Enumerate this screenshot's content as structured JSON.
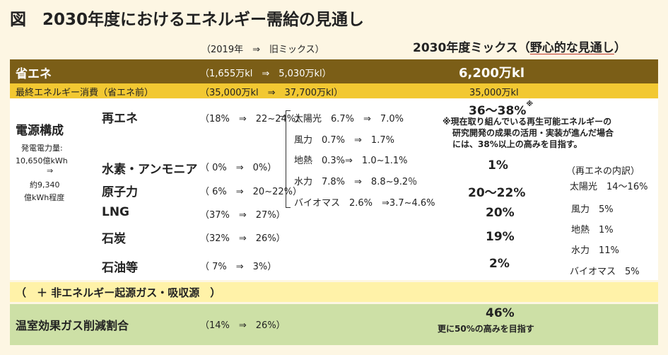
{
  "title": "図　2030年度におけるエネルギー需給の見通し",
  "header": {
    "old_mix": "（2019年　⇒　旧ミックス）",
    "new_mix_prefix": "2030年度ミックス（",
    "new_mix_underlined": "野心的な見通し",
    "new_mix_suffix": "）"
  },
  "savings": {
    "label": "省エネ",
    "range": "（1,655万kl　⇒　5,030万kl）",
    "value": "6,200万kl"
  },
  "final_consumption": {
    "label": "最終エネルギー消費（省エネ前）",
    "range": "（35,000万kl　⇒　37,700万kl）",
    "value": "35,000万kl"
  },
  "power": {
    "heading": "電源構成",
    "sub1": "発電電力量:",
    "sub2": "10,650億kWh",
    "sub3": "⇒",
    "sub4": "約9,340",
    "sub5": "億kWh程度"
  },
  "sources": [
    {
      "label": "再エネ",
      "range": "（18%　⇒　22~24%）",
      "value": "36～38%"
    },
    {
      "label": "水素・アンモニア",
      "range": "（ 0%　⇒　0%）",
      "value": "1%"
    },
    {
      "label": "原子力",
      "range": "（ 6%　⇒　20~22%）",
      "value": "20～22%"
    },
    {
      "label": "LNG",
      "range": "（37%　⇒　27%）",
      "value": "20%"
    },
    {
      "label": "石炭",
      "range": "（32%　⇒　26%）",
      "value": "19%"
    },
    {
      "label": "石油等",
      "range": "（ 7%　⇒　3%）",
      "value": "2%"
    }
  ],
  "renewable_note_mark": "※",
  "renewable_breakdown_old": [
    "太陽光　6.7%　⇒　7.0%",
    "風力　0.7%　⇒　1.7%",
    "地熱　0.3%⇒　1.0~1.1%",
    "水力　7.8%　⇒　8.8~9.2％",
    "バイオマス　2.6%　⇒3.7~4.6%"
  ],
  "note": {
    "line1": "※現在取り組んでいる再生可能エネルギーの",
    "line2": "研究開発の成果の活用・実装が進んだ場合",
    "line3": "には、38%以上の高みを目指す。"
  },
  "renewable_breakdown_new": {
    "heading": "（再エネの内訳）",
    "items": [
      "太陽光　14～16%",
      "風力　5%",
      "地熱　1%",
      "水力　11%",
      "バイオマス　5%"
    ]
  },
  "non_energy": "（　＋ 非エネルギー起源ガス・吸収源　）",
  "ghg": {
    "label": "温室効果ガス削減割合",
    "range": "（14%　⇒　26%）",
    "value": "46%",
    "note": "更に50%の高みを目指す"
  }
}
